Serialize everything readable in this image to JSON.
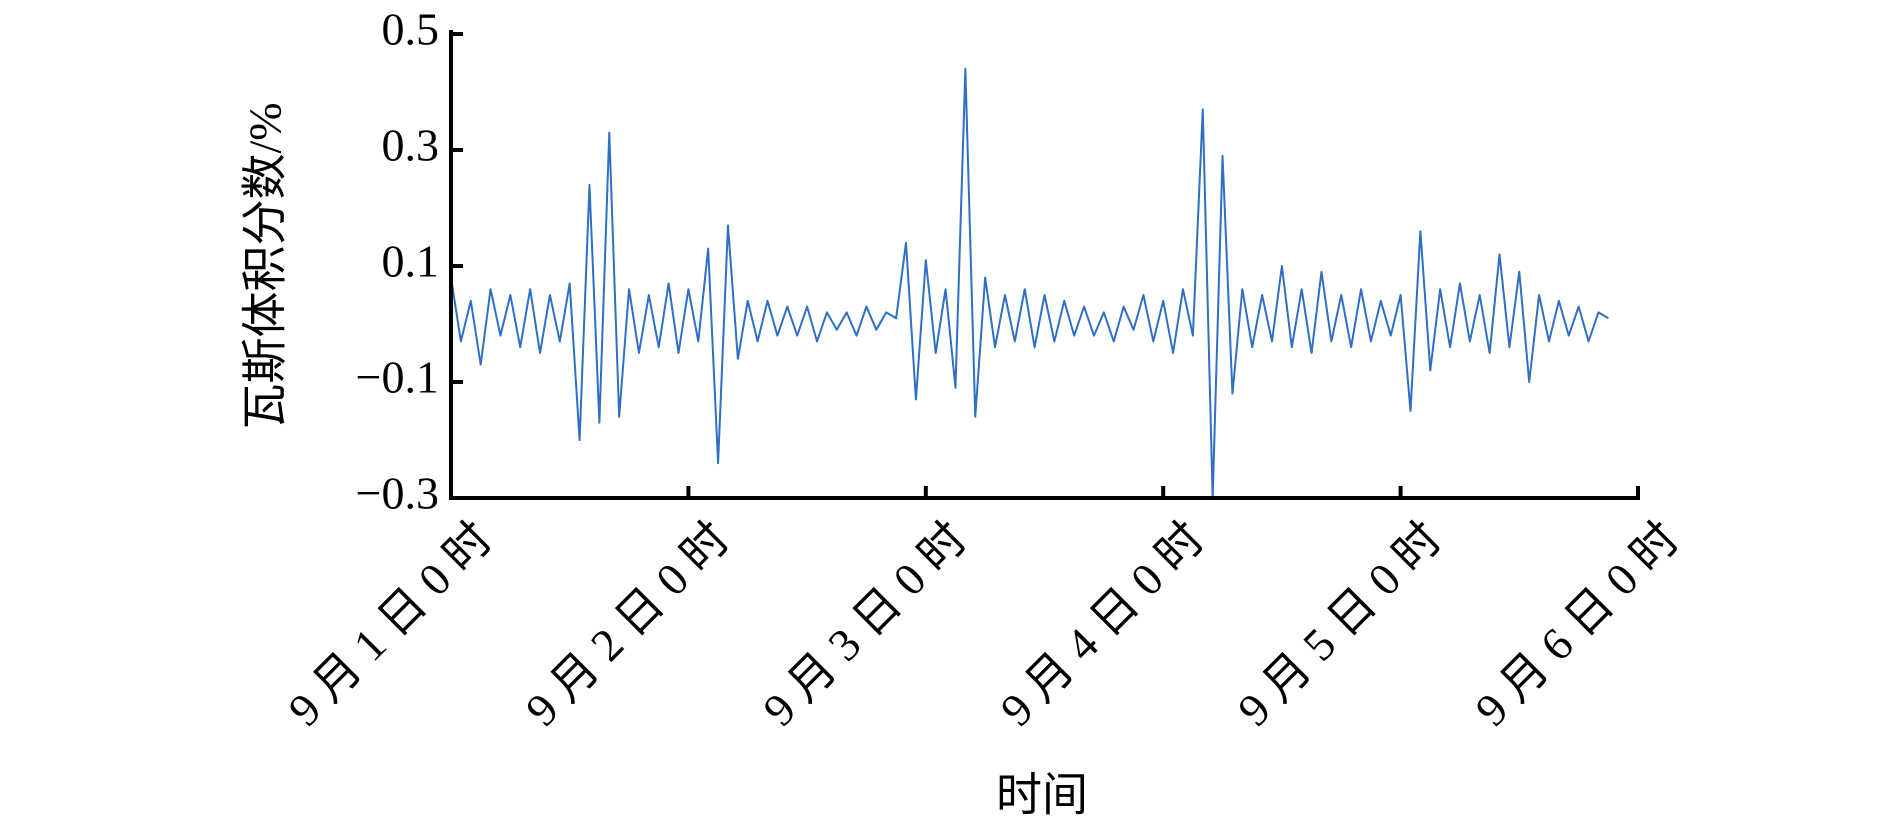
{
  "chart_data": {
    "type": "line",
    "xlabel": "时间",
    "ylabel": "瓦斯体积分数/%",
    "x": [
      0,
      1,
      2,
      3,
      4,
      5,
      6,
      7,
      8,
      9,
      10,
      11,
      12,
      13,
      14,
      15,
      16,
      17,
      18,
      19,
      20,
      21,
      22,
      23,
      24,
      25,
      26,
      27,
      28,
      29,
      30,
      31,
      32,
      33,
      34,
      35,
      36,
      37,
      38,
      39,
      40,
      41,
      42,
      43,
      44,
      45,
      46,
      47,
      48,
      49,
      50,
      51,
      52,
      53,
      54,
      55,
      56,
      57,
      58,
      59,
      60,
      61,
      62,
      63,
      64,
      65,
      66,
      67,
      68,
      69,
      70,
      71,
      72,
      73,
      74,
      75,
      76,
      77,
      78,
      79,
      80,
      81,
      82,
      83,
      84,
      85,
      86,
      87,
      88,
      89,
      90,
      91,
      92,
      93,
      94,
      95,
      96,
      97,
      98,
      99,
      100,
      101,
      102,
      103,
      104,
      105,
      106,
      107,
      108,
      109,
      110,
      111,
      112,
      113,
      114,
      115,
      116,
      117
    ],
    "series": [
      {
        "color": "#2f6fc4",
        "values": [
          0.08,
          -0.03,
          0.04,
          -0.07,
          0.06,
          -0.02,
          0.05,
          -0.04,
          0.06,
          -0.05,
          0.05,
          -0.03,
          0.07,
          -0.2,
          0.24,
          -0.17,
          0.33,
          -0.16,
          0.06,
          -0.05,
          0.05,
          -0.04,
          0.07,
          -0.05,
          0.06,
          -0.03,
          0.13,
          -0.24,
          0.17,
          -0.06,
          0.04,
          -0.03,
          0.04,
          -0.02,
          0.03,
          -0.02,
          0.03,
          -0.03,
          0.02,
          -0.01,
          0.02,
          -0.02,
          0.03,
          -0.01,
          0.02,
          0.01,
          0.14,
          -0.13,
          0.11,
          -0.05,
          0.06,
          -0.11,
          0.44,
          -0.16,
          0.08,
          -0.04,
          0.05,
          -0.03,
          0.06,
          -0.04,
          0.05,
          -0.03,
          0.04,
          -0.02,
          0.03,
          -0.02,
          0.02,
          -0.03,
          0.03,
          -0.01,
          0.05,
          -0.03,
          0.04,
          -0.05,
          0.06,
          -0.02,
          0.37,
          -0.3,
          0.29,
          -0.12,
          0.06,
          -0.04,
          0.05,
          -0.03,
          0.1,
          -0.04,
          0.06,
          -0.05,
          0.09,
          -0.03,
          0.05,
          -0.04,
          0.06,
          -0.03,
          0.04,
          -0.02,
          0.05,
          -0.15,
          0.16,
          -0.08,
          0.06,
          -0.04,
          0.07,
          -0.03,
          0.05,
          -0.05,
          0.12,
          -0.04,
          0.09,
          -0.1,
          0.05,
          -0.03,
          0.04,
          -0.02,
          0.03,
          -0.03,
          0.02,
          0.01
        ]
      }
    ],
    "xlim": [
      0,
      120
    ],
    "xticks": [
      {
        "value": 0,
        "label": "9 月 1 日 0 时"
      },
      {
        "value": 24,
        "label": "9 月 2 日 0 时"
      },
      {
        "value": 48,
        "label": "9 月 3 日 0 时"
      },
      {
        "value": 72,
        "label": "9 月 4 日 0 时"
      },
      {
        "value": 96,
        "label": "9 月 5 日 0 时"
      },
      {
        "value": 120,
        "label": "9 月 6 日 0 时"
      }
    ],
    "ylim": [
      -0.3,
      0.5
    ],
    "yticks": [
      {
        "value": -0.3,
        "label": "−0.3"
      },
      {
        "value": -0.1,
        "label": "−0.1"
      },
      0.1,
      0.3,
      0.5
    ]
  }
}
